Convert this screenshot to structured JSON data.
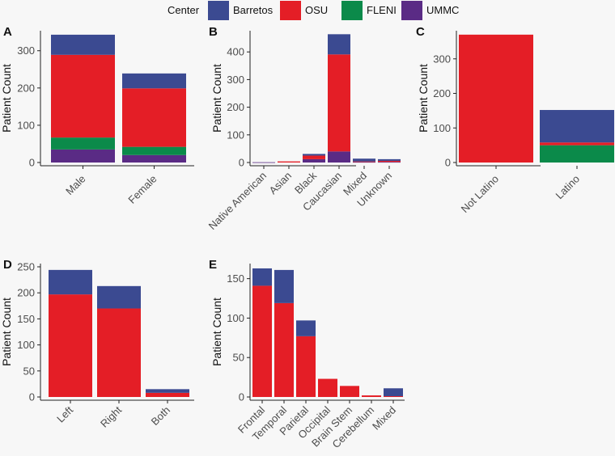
{
  "legend": {
    "title": "Center",
    "entries": [
      {
        "name": "Barretos",
        "color": "#3b4a91"
      },
      {
        "name": "OSU",
        "color": "#e41e26"
      },
      {
        "name": "FLENI",
        "color": "#0b8a4a"
      },
      {
        "name": "UMMC",
        "color": "#5a2b85"
      }
    ]
  },
  "chart_data": [
    {
      "panel": "A",
      "type": "bar",
      "stacked": true,
      "ylabel": "Patient Count",
      "ylim": [
        0,
        345
      ],
      "yticks": [
        0,
        100,
        200,
        300
      ],
      "categories": [
        "Male",
        "Female"
      ],
      "series": [
        {
          "name": "UMMC",
          "values": [
            35,
            20
          ]
        },
        {
          "name": "FLENI",
          "values": [
            32,
            22
          ]
        },
        {
          "name": "OSU",
          "values": [
            222,
            157
          ]
        },
        {
          "name": "Barretos",
          "values": [
            54,
            40
          ]
        }
      ]
    },
    {
      "panel": "B",
      "type": "bar",
      "stacked": true,
      "ylabel": "Patient Count",
      "ylim": [
        0,
        465
      ],
      "yticks": [
        0,
        100,
        200,
        300,
        400
      ],
      "categories": [
        "Native American",
        "Asian",
        "Black",
        "Caucasian",
        "Mixed",
        "Unknown"
      ],
      "series": [
        {
          "name": "UMMC",
          "values": [
            1,
            0,
            12,
            40,
            2,
            2
          ]
        },
        {
          "name": "FLENI",
          "values": [
            0,
            0,
            0,
            0,
            0,
            0
          ]
        },
        {
          "name": "OSU",
          "values": [
            0,
            4,
            13,
            351,
            2,
            4
          ]
        },
        {
          "name": "Barretos",
          "values": [
            0,
            0,
            6,
            73,
            10,
            6
          ]
        }
      ]
    },
    {
      "panel": "C",
      "type": "bar",
      "stacked": true,
      "ylabel": "Patient Count",
      "ylim": [
        0,
        372
      ],
      "yticks": [
        0,
        100,
        200,
        300
      ],
      "categories": [
        "Not Latino",
        "Latino"
      ],
      "series": [
        {
          "name": "UMMC",
          "values": [
            0,
            0
          ]
        },
        {
          "name": "FLENI",
          "values": [
            0,
            50
          ]
        },
        {
          "name": "OSU",
          "values": [
            370,
            8
          ]
        },
        {
          "name": "Barretos",
          "values": [
            0,
            94
          ]
        }
      ]
    },
    {
      "panel": "D",
      "type": "bar",
      "stacked": true,
      "ylabel": "Patient Count",
      "ylim": [
        0,
        250
      ],
      "yticks": [
        0,
        50,
        100,
        150,
        200,
        250
      ],
      "categories": [
        "Left",
        "Right",
        "Both"
      ],
      "series": [
        {
          "name": "UMMC",
          "values": [
            0,
            0,
            0
          ]
        },
        {
          "name": "FLENI",
          "values": [
            0,
            0,
            0
          ]
        },
        {
          "name": "OSU",
          "values": [
            197,
            170,
            8
          ]
        },
        {
          "name": "Barretos",
          "values": [
            47,
            43,
            7
          ]
        }
      ]
    },
    {
      "panel": "E",
      "type": "bar",
      "stacked": true,
      "ylabel": "Patient Count",
      "ylim": [
        0,
        165
      ],
      "yticks": [
        0,
        50,
        100,
        150
      ],
      "categories": [
        "Frontal",
        "Temporal",
        "Parietal",
        "Occipital",
        "Brain Stem",
        "Cerebellum",
        "Mixed"
      ],
      "series": [
        {
          "name": "UMMC",
          "values": [
            0,
            0,
            0,
            0,
            0,
            0,
            0
          ]
        },
        {
          "name": "FLENI",
          "values": [
            0,
            0,
            0,
            0,
            0,
            0,
            0
          ]
        },
        {
          "name": "OSU",
          "values": [
            141,
            119,
            77,
            23,
            14,
            2,
            1
          ]
        },
        {
          "name": "Barretos",
          "values": [
            22,
            42,
            20,
            0,
            0,
            0,
            10
          ]
        }
      ]
    }
  ]
}
